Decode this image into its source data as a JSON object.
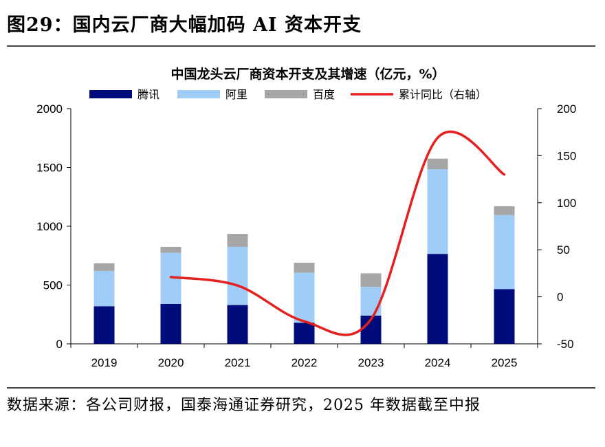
{
  "figure": {
    "title": "图29：国内云厂商大幅加码 AI 资本开支",
    "source": "数据来源：各公司财报，国泰海通证券研究，2025 年数据截至中报"
  },
  "colors": {
    "tencent": "#000c7b",
    "alibaba": "#9fcdf7",
    "baidu": "#a6a6a6",
    "yoy": "#e51e1e"
  },
  "chart_data": {
    "type": "bar",
    "stacked": true,
    "title": "中国龙头云厂商资本开支及其增速（亿元，%）",
    "categories": [
      "2019",
      "2020",
      "2021",
      "2022",
      "2023",
      "2024",
      "2025"
    ],
    "series": [
      {
        "name": "腾讯",
        "type": "bar",
        "axis": "left",
        "values": [
          320,
          340,
          330,
          180,
          240,
          765,
          465
        ]
      },
      {
        "name": "阿里",
        "type": "bar",
        "axis": "left",
        "values": [
          300,
          435,
          495,
          425,
          245,
          720,
          630
        ]
      },
      {
        "name": "百度",
        "type": "bar",
        "axis": "left",
        "values": [
          65,
          50,
          110,
          85,
          115,
          90,
          75
        ]
      },
      {
        "name": "累计同比（右轴）",
        "type": "line",
        "axis": "right",
        "values": [
          null,
          21,
          12,
          -26,
          -24,
          169,
          130
        ]
      }
    ],
    "y_left": {
      "min": 0,
      "max": 2000,
      "ticks": [
        "0",
        "500",
        "1000",
        "1500",
        "2000"
      ],
      "tick_values": [
        0,
        500,
        1000,
        1500,
        2000
      ]
    },
    "y_right": {
      "min": -50,
      "max": 200,
      "ticks": [
        "-50",
        "0",
        "50",
        "100",
        "150",
        "200"
      ],
      "tick_values": [
        -50,
        0,
        50,
        100,
        150,
        200
      ]
    },
    "legend_position": "top",
    "grid": false
  }
}
